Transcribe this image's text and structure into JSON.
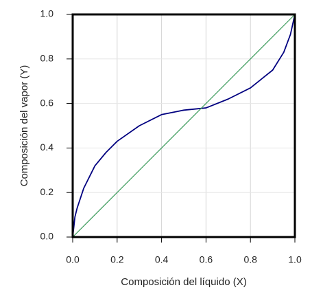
{
  "chart_data": {
    "type": "line",
    "xlabel": "Composición del líquido (X)",
    "ylabel": "Composición del vapor (Y)",
    "xlim": [
      0,
      1
    ],
    "ylim": [
      0,
      1
    ],
    "xticks": [
      {
        "value": 0,
        "label": "0.0"
      },
      {
        "value": 0.2,
        "label": "0.2"
      },
      {
        "value": 0.4,
        "label": "0.4"
      },
      {
        "value": 0.6,
        "label": "0.6"
      },
      {
        "value": 0.8,
        "label": "0.8"
      },
      {
        "value": 1,
        "label": "1.0"
      }
    ],
    "yticks": [
      {
        "value": 0,
        "label": "0.0"
      },
      {
        "value": 0.2,
        "label": "0.2"
      },
      {
        "value": 0.4,
        "label": "0.4"
      },
      {
        "value": 0.6,
        "label": "0.6"
      },
      {
        "value": 0.8,
        "label": "0.8"
      },
      {
        "value": 1,
        "label": "1.0"
      }
    ],
    "grid": true,
    "series": [
      {
        "color": "#000080",
        "x": [
          0,
          0.01,
          0.02,
          0.05,
          0.1,
          0.15,
          0.2,
          0.3,
          0.4,
          0.5,
          0.6,
          0.7,
          0.8,
          0.9,
          0.95,
          0.98,
          1.0
        ],
        "values": [
          0,
          0.09,
          0.13,
          0.22,
          0.32,
          0.38,
          0.43,
          0.5,
          0.55,
          0.57,
          0.58,
          0.62,
          0.67,
          0.75,
          0.83,
          0.91,
          1.0
        ]
      },
      {
        "color": "#3a9a5a",
        "x": [
          0,
          1
        ],
        "values": [
          0,
          1
        ]
      }
    ]
  }
}
